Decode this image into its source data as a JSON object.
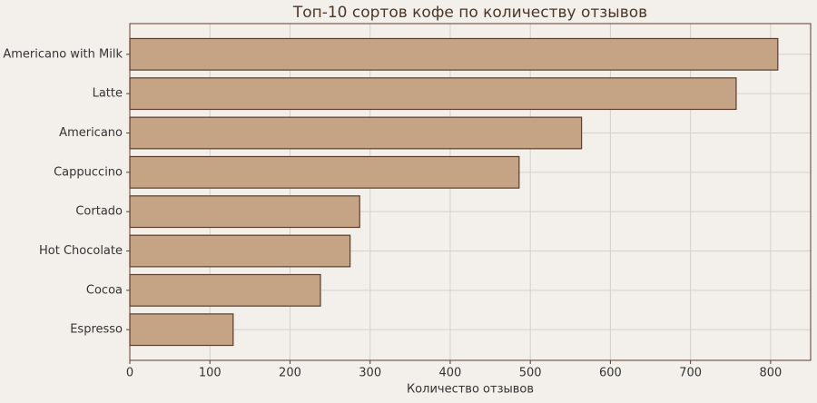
{
  "chart_data": {
    "type": "barh",
    "title": "Топ-10 сортов кофе по количеству отзывов",
    "xlabel": "Количество отзывов",
    "categories": [
      "Americano with Milk",
      "Latte",
      "Americano",
      "Cappuccino",
      "Cortado",
      "Hot Chocolate",
      "Cocoa",
      "Espresso"
    ],
    "values": [
      809,
      757,
      564,
      486,
      287,
      275,
      238,
      129
    ],
    "color": "#c4a484",
    "edgecolor": "#5c3d2e",
    "xlim": [
      0,
      850
    ],
    "xticks": [
      0,
      100,
      200,
      300,
      400,
      500,
      600,
      700,
      800
    ],
    "grid": true
  }
}
